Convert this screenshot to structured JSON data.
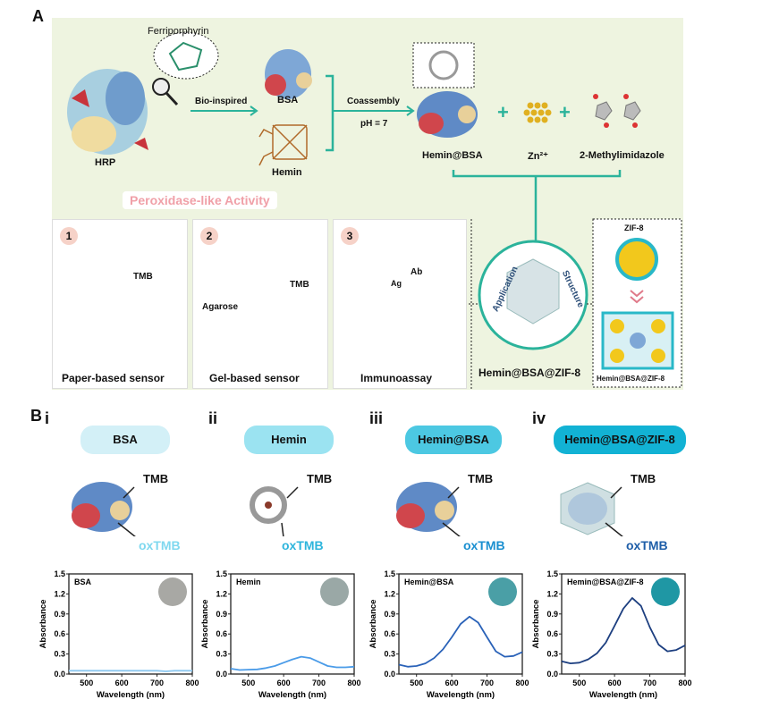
{
  "panel_a": {
    "letter": "A",
    "ferriporphyrin": "Ferriporphyrin",
    "hrp": "HRP",
    "bio_inspired": "Bio-inspired",
    "bsa": "BSA",
    "hemin": "Hemin",
    "coassembly": "Coassembly",
    "ph": "pH = 7",
    "hemin_bsa": "Hemin@BSA",
    "zn": "Zn²⁺",
    "methylimidazole": "2-Methylimidazole",
    "peroxidase": "Peroxidase-like Activity",
    "sub1": {
      "num": "1",
      "tmb": "TMB",
      "caption": "Paper-based sensor"
    },
    "sub2": {
      "num": "2",
      "tmb": "TMB",
      "agarose": "Agarose",
      "caption": "Gel-based sensor"
    },
    "sub3": {
      "num": "3",
      "ab": "Ab",
      "ag": "Ag",
      "caption": "Immunoassay"
    },
    "application": "Application",
    "structure": "Structure",
    "composite": "Hemin@BSA@ZIF-8",
    "zif8": "ZIF-8",
    "zif_caption": "Hemin@BSA@ZIF-8"
  },
  "panel_b": {
    "letter": "B",
    "columns": [
      {
        "roman": "i",
        "pill": "BSA",
        "pill_color": "#d3f0f7",
        "tmb": "TMB",
        "oxtmb": "oxTMB",
        "ox_color": "#7fd8ef"
      },
      {
        "roman": "ii",
        "pill": "Hemin",
        "pill_color": "#9be3f1",
        "tmb": "TMB",
        "oxtmb": "oxTMB",
        "ox_color": "#2eb5dc"
      },
      {
        "roman": "iii",
        "pill": "Hemin@BSA",
        "pill_color": "#4cc8e2",
        "tmb": "TMB",
        "oxtmb": "oxTMB",
        "ox_color": "#1a8fd0"
      },
      {
        "roman": "iv",
        "pill": "Hemin@BSA@ZIF-8",
        "pill_color": "#12b2d4",
        "tmb": "TMB",
        "oxtmb": "oxTMB",
        "ox_color": "#1e5ea8"
      }
    ]
  },
  "chart_data": [
    {
      "type": "line",
      "label": "BSA",
      "xlabel": "Wavelength (nm)",
      "ylabel": "Absorbance",
      "xlim": [
        450,
        800
      ],
      "ylim": [
        0,
        1.5
      ],
      "xticks": [
        "500",
        "600",
        "700",
        "800"
      ],
      "yticks": [
        "0.0",
        "0.3",
        "0.6",
        "0.9",
        "1.2",
        "1.5"
      ],
      "line_color": "#8cc8f0",
      "swatch_color": "#a8a8a4",
      "x": [
        450,
        475,
        500,
        525,
        550,
        575,
        600,
        625,
        650,
        675,
        700,
        725,
        750,
        775,
        800
      ],
      "y": [
        0.05,
        0.05,
        0.05,
        0.05,
        0.05,
        0.05,
        0.05,
        0.05,
        0.05,
        0.05,
        0.05,
        0.04,
        0.05,
        0.05,
        0.05
      ]
    },
    {
      "type": "line",
      "label": "Hemin",
      "xlabel": "Wavelength (nm)",
      "ylabel": "Absorbance",
      "xlim": [
        450,
        800
      ],
      "ylim": [
        0,
        1.5
      ],
      "xticks": [
        "500",
        "600",
        "700",
        "800"
      ],
      "yticks": [
        "0.0",
        "0.3",
        "0.6",
        "0.9",
        "1.2",
        "1.5"
      ],
      "line_color": "#4a9be8",
      "swatch_color": "#9aa8a6",
      "x": [
        450,
        475,
        500,
        525,
        550,
        575,
        600,
        625,
        650,
        675,
        700,
        725,
        750,
        775,
        800
      ],
      "y": [
        0.08,
        0.06,
        0.065,
        0.07,
        0.09,
        0.12,
        0.17,
        0.22,
        0.26,
        0.24,
        0.18,
        0.12,
        0.1,
        0.1,
        0.11
      ]
    },
    {
      "type": "line",
      "label": "Hemin@BSA",
      "xlabel": "Wavelength (nm)",
      "ylabel": "Absorbance",
      "xlim": [
        450,
        800
      ],
      "ylim": [
        0,
        1.5
      ],
      "xticks": [
        "500",
        "600",
        "700",
        "800"
      ],
      "yticks": [
        "0.0",
        "0.3",
        "0.6",
        "0.9",
        "1.2",
        "1.5"
      ],
      "line_color": "#2a62b8",
      "swatch_color": "#4a9fa6",
      "x": [
        450,
        475,
        500,
        525,
        550,
        575,
        600,
        625,
        650,
        675,
        700,
        725,
        750,
        775,
        800
      ],
      "y": [
        0.14,
        0.11,
        0.12,
        0.16,
        0.24,
        0.37,
        0.55,
        0.75,
        0.86,
        0.77,
        0.55,
        0.34,
        0.26,
        0.27,
        0.33
      ]
    },
    {
      "type": "line",
      "label": "Hemin@BSA@ZIF-8",
      "xlabel": "Wavelength (nm)",
      "ylabel": "Absorbance",
      "xlim": [
        450,
        800
      ],
      "ylim": [
        0,
        1.5
      ],
      "xticks": [
        "500",
        "600",
        "700",
        "800"
      ],
      "yticks": [
        "0.0",
        "0.3",
        "0.6",
        "0.9",
        "1.2",
        "1.5"
      ],
      "line_color": "#1d3f80",
      "swatch_color": "#1f97a4",
      "x": [
        450,
        475,
        500,
        525,
        550,
        575,
        600,
        625,
        650,
        675,
        700,
        725,
        750,
        775,
        800
      ],
      "y": [
        0.19,
        0.16,
        0.17,
        0.22,
        0.31,
        0.47,
        0.72,
        0.98,
        1.14,
        1.02,
        0.7,
        0.44,
        0.34,
        0.36,
        0.43
      ]
    }
  ]
}
